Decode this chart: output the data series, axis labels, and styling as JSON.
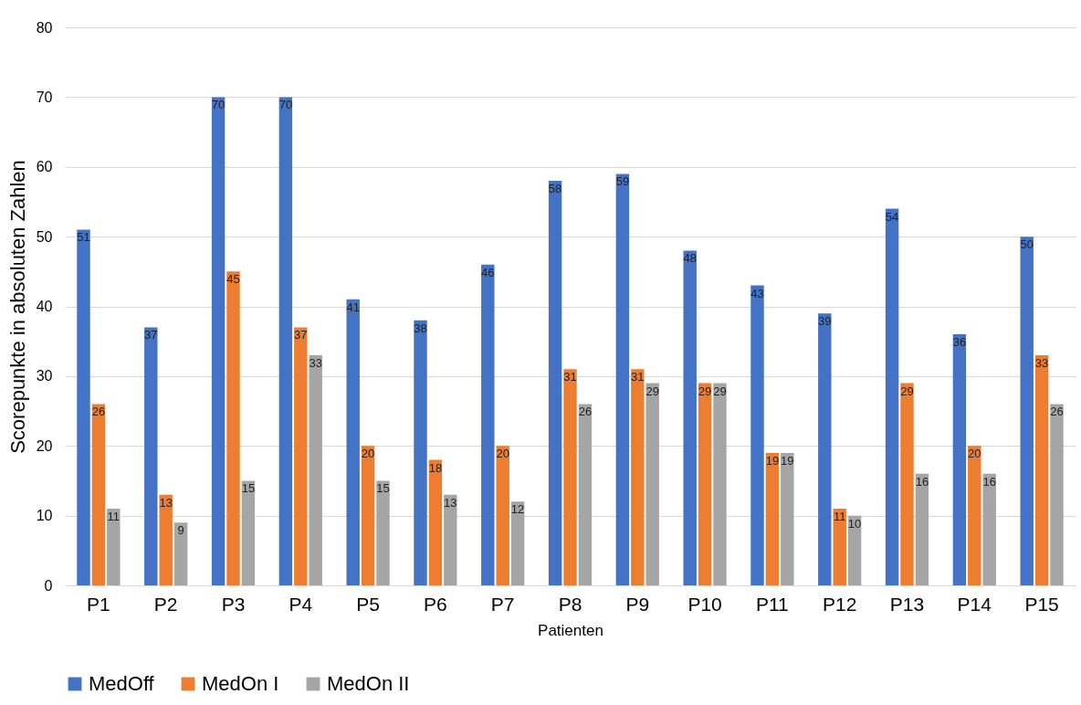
{
  "chart_data": {
    "type": "bar",
    "xlabel": "Patienten",
    "ylabel": "Scorepunkte in absoluten Zahlen",
    "categories": [
      "P1",
      "P2",
      "P3",
      "P4",
      "P5",
      "P6",
      "P7",
      "P8",
      "P9",
      "P10",
      "P11",
      "P12",
      "P13",
      "P14",
      "P15"
    ],
    "series": [
      {
        "name": "MedOff",
        "color": "#4472c4",
        "values": [
          51,
          37,
          70,
          70,
          41,
          38,
          46,
          58,
          59,
          48,
          43,
          39,
          54,
          36,
          50
        ]
      },
      {
        "name": "MedOn I",
        "color": "#ed7d31",
        "values": [
          26,
          13,
          45,
          37,
          20,
          18,
          20,
          31,
          31,
          29,
          19,
          11,
          29,
          20,
          33
        ]
      },
      {
        "name": "MedOn II",
        "color": "#a5a5a5",
        "values": [
          11,
          9,
          15,
          33,
          15,
          13,
          12,
          26,
          29,
          29,
          19,
          10,
          16,
          16,
          26
        ]
      }
    ],
    "ylim": [
      0,
      80
    ],
    "yticks": [
      0,
      10,
      20,
      30,
      40,
      50,
      60,
      70,
      80
    ],
    "grid": "y",
    "legend": "bottom",
    "data_labels": true
  }
}
